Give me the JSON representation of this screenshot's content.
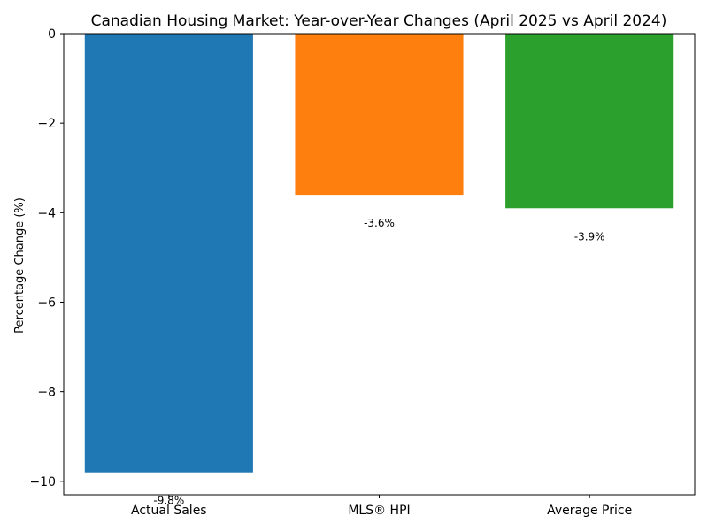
{
  "chart_data": {
    "type": "bar",
    "title": "Canadian Housing Market: Year-over-Year Changes (April 2025 vs April 2024)",
    "xlabel": "",
    "ylabel": "Percentage Change (%)",
    "categories": [
      "Actual Sales",
      "MLS® HPI",
      "Average Price"
    ],
    "values": [
      -9.8,
      -3.6,
      -3.9
    ],
    "data_labels": [
      "-9.8%",
      "-3.6%",
      "-3.9%"
    ],
    "colors": [
      "#1f77b4",
      "#ff7f0e",
      "#2ca02c"
    ],
    "ylim": [
      -10.3,
      0
    ],
    "yticks": [
      0,
      -2,
      -4,
      -6,
      -8,
      -10
    ],
    "ytick_labels": [
      "0",
      "−2",
      "−4",
      "−6",
      "−8",
      "−10"
    ],
    "grid": false,
    "legend": "none"
  }
}
